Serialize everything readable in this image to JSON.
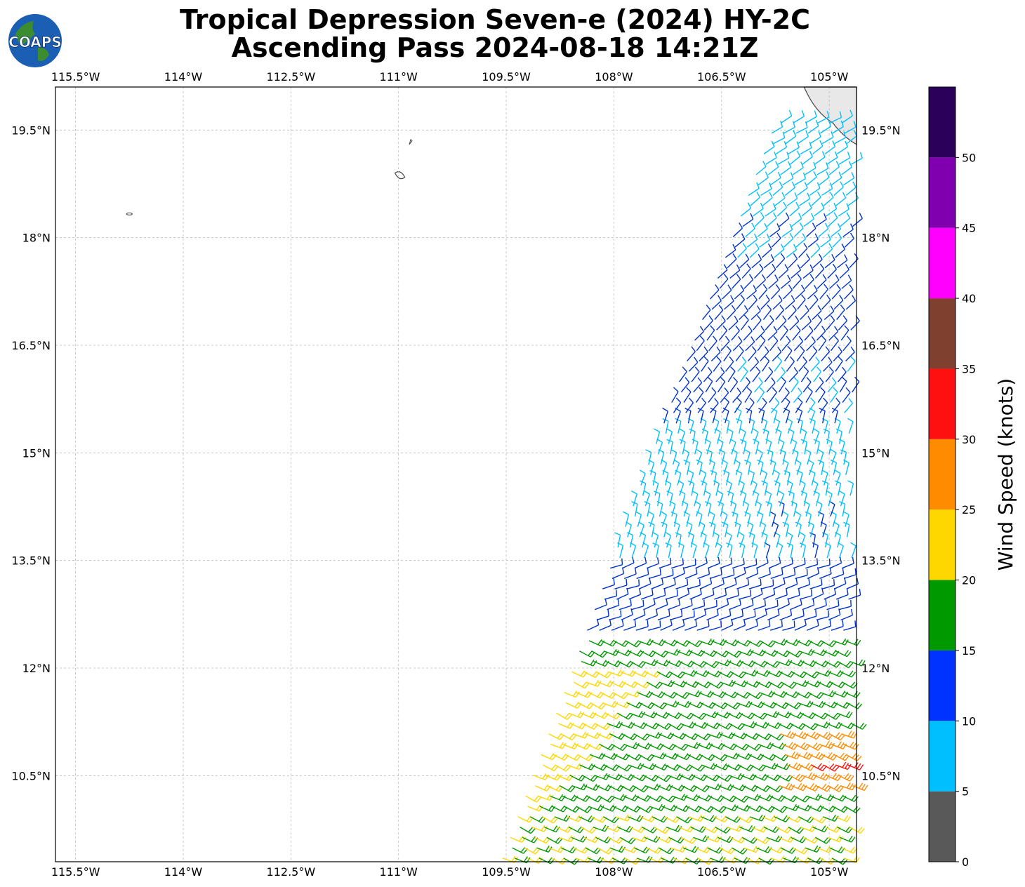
{
  "title": {
    "line1": "Tropical Depression Seven-e (2024) HY-2C",
    "line2": "Ascending Pass 2024-08-18 14:21Z"
  },
  "logo": {
    "text": "COAPS",
    "icon": "globe-icon"
  },
  "map": {
    "projection": "lat-lon",
    "lon_range": [
      -115.78,
      -104.62
    ],
    "lat_range": [
      9.3,
      20.1
    ],
    "lon_ticks": [
      {
        "value": -115.5,
        "label": "115.5°W"
      },
      {
        "value": -114.0,
        "label": "114°W"
      },
      {
        "value": -112.5,
        "label": "112.5°W"
      },
      {
        "value": -111.0,
        "label": "111°W"
      },
      {
        "value": -109.5,
        "label": "109.5°W"
      },
      {
        "value": -108.0,
        "label": "108°W"
      },
      {
        "value": -106.5,
        "label": "106.5°W"
      },
      {
        "value": -105.0,
        "label": "105°W"
      }
    ],
    "lat_ticks": [
      {
        "value": 19.5,
        "label": "19.5°N"
      },
      {
        "value": 18.0,
        "label": "18°N"
      },
      {
        "value": 16.5,
        "label": "16.5°N"
      },
      {
        "value": 15.0,
        "label": "15°N"
      },
      {
        "value": 13.5,
        "label": "13.5°N"
      },
      {
        "value": 12.0,
        "label": "12°N"
      },
      {
        "value": 10.5,
        "label": "10.5°N"
      }
    ],
    "grid": true,
    "land_color": "#e8e8e8"
  },
  "chart_data": {
    "type": "scatter",
    "title": "",
    "description_markers": "wind barbs",
    "swath_edges": {
      "north_west_lon": -105.75,
      "north_lat": 19.6,
      "south_west_lon": -109.55,
      "south_lat": 9.35
    },
    "regions": [
      {
        "name": "northern swath",
        "lat_range": [
          17.6,
          19.5
        ],
        "speed_kt": 8,
        "color": "#00bfff"
      },
      {
        "name": "northern swath core",
        "lat_range": [
          15.3,
          17.6
        ],
        "speed_kt": 12,
        "color": "#0033cc"
      },
      {
        "name": "middle swath",
        "lat_range": [
          13.4,
          15.3
        ],
        "speed_kt": 8,
        "color": "#00bfff"
      },
      {
        "name": "middle band",
        "lat_range": [
          12.4,
          13.4
        ],
        "speed_kt": 12,
        "color": "#0033cc"
      },
      {
        "name": "green zone",
        "lat_range": [
          10.0,
          12.4
        ],
        "speed_kt": 17,
        "color": "#009900"
      },
      {
        "name": "yellow zone",
        "lat_range": [
          9.35,
          12.0
        ],
        "speed_kt": 22,
        "color": "#ffd700"
      },
      {
        "name": "orange spot",
        "lat_range": [
          10.3,
          11.1
        ],
        "speed_kt": 27,
        "color": "#ff8c00"
      },
      {
        "name": "red spot",
        "lat_range": [
          10.6,
          10.75
        ],
        "speed_kt": 32,
        "color": "#ff1010"
      }
    ]
  },
  "colorbar": {
    "label": "Wind Speed (knots)",
    "bins": [
      {
        "from": 0,
        "to": 5,
        "color": "#595959"
      },
      {
        "from": 5,
        "to": 10,
        "color": "#00bfff"
      },
      {
        "from": 10,
        "to": 15,
        "color": "#0033ff"
      },
      {
        "from": 15,
        "to": 20,
        "color": "#009900"
      },
      {
        "from": 20,
        "to": 25,
        "color": "#ffd700"
      },
      {
        "from": 25,
        "to": 30,
        "color": "#ff8c00"
      },
      {
        "from": 30,
        "to": 35,
        "color": "#ff1010"
      },
      {
        "from": 35,
        "to": 40,
        "color": "#804030"
      },
      {
        "from": 40,
        "to": 45,
        "color": "#ff00ff"
      },
      {
        "from": 45,
        "to": 50,
        "color": "#8000b0"
      },
      {
        "from": 50,
        "to": 55,
        "color": "#2a005a"
      }
    ],
    "tick_labels": [
      "0",
      "5",
      "10",
      "15",
      "20",
      "25",
      "30",
      "35",
      "40",
      "45",
      "50"
    ]
  }
}
